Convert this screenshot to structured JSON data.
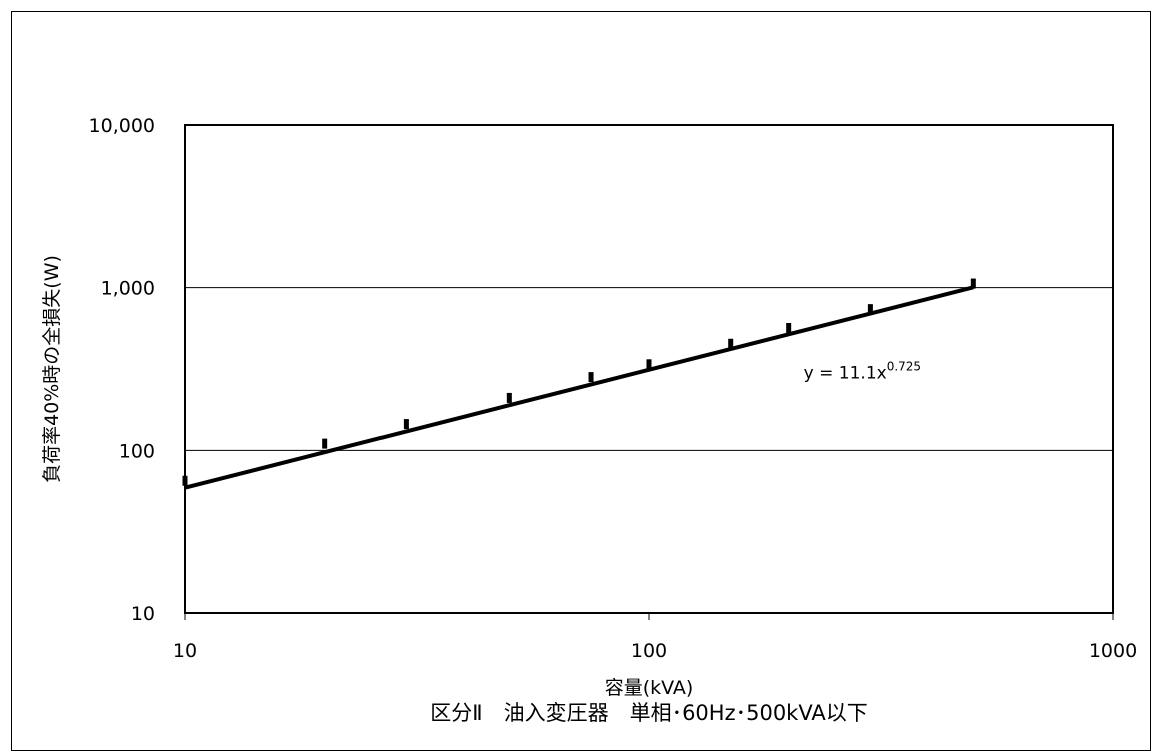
{
  "chart_data": {
    "type": "scatter",
    "title": "区分Ⅱ　油入変圧器　単相･60Hz･500kVA以下",
    "xlabel": "容量(kVA)",
    "ylabel": "負荷率40%時の全損失(W)",
    "x_scale": "log",
    "y_scale": "log",
    "xlim": [
      10,
      1000
    ],
    "ylim": [
      10,
      10000
    ],
    "x_ticks": [
      10,
      100,
      1000
    ],
    "x_tick_labels": [
      "10",
      "100",
      "1000"
    ],
    "y_ticks": [
      10,
      100,
      1000,
      10000
    ],
    "y_tick_labels": [
      "10",
      "100",
      "1,000",
      "10,000"
    ],
    "grid": "horizontal",
    "legend": "none",
    "series": [
      {
        "kind": "points",
        "x": [
          10,
          20,
          30,
          50,
          75,
          100,
          150,
          200,
          300,
          500
        ],
        "y": [
          65,
          110,
          145,
          210,
          282,
          338,
          452,
          565,
          738,
          1060
        ],
        "color": "#000000"
      },
      {
        "kind": "trendline",
        "function": "power",
        "coef": 11.1,
        "exponent": 0.725,
        "x_range": [
          10,
          500
        ],
        "color": "#000000"
      }
    ],
    "annotations": [
      {
        "text_base": "y = 11.1x",
        "text_sup": "0.725",
        "x": 200,
        "y": 300
      }
    ]
  }
}
